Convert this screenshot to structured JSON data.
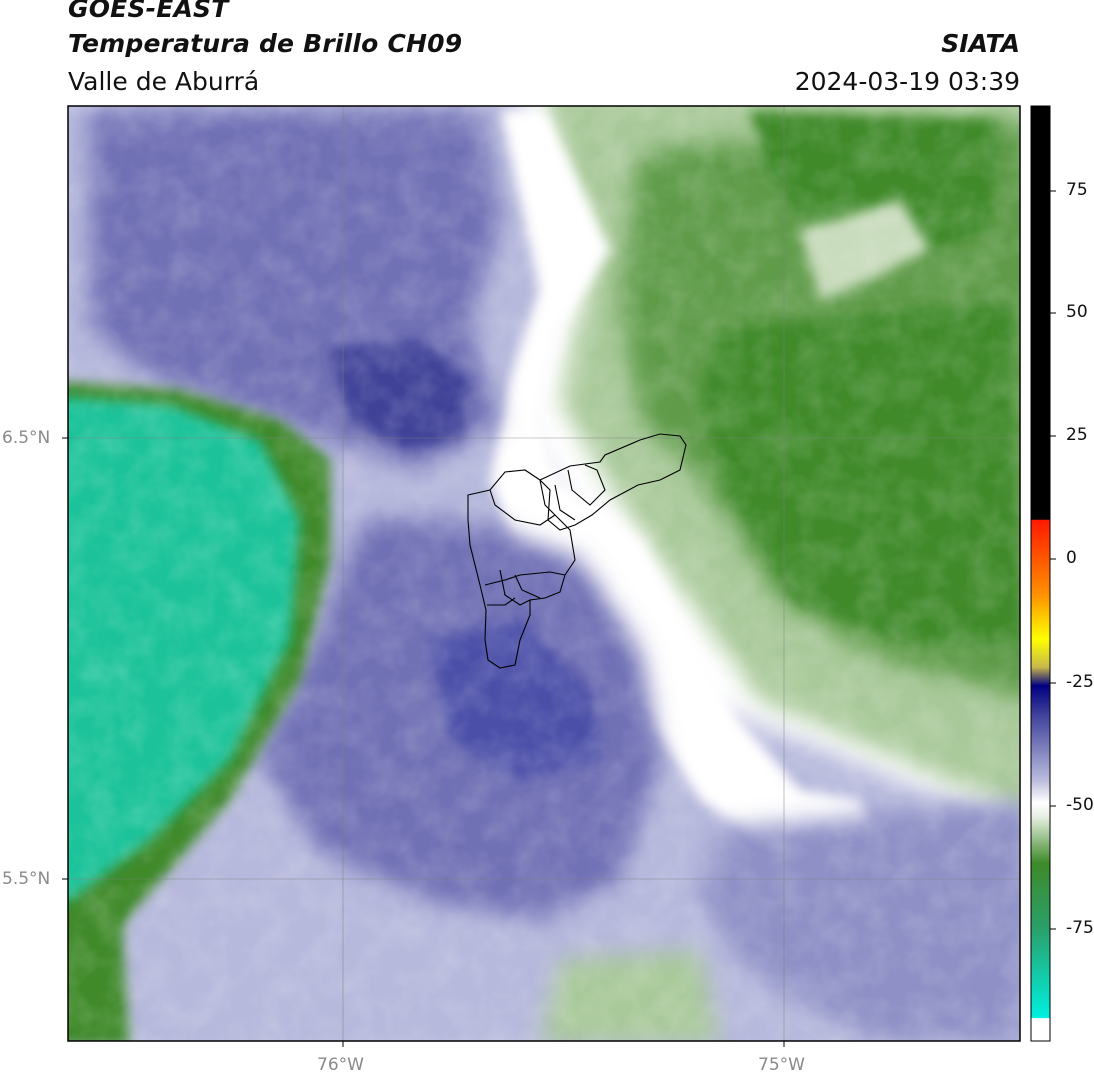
{
  "header": {
    "satellite": "GOES-EAST",
    "product": "Temperatura de Brillo CH09",
    "agency": "SIATA",
    "region": "Valle de Aburrá",
    "datetime": "2024-03-19 03:39"
  },
  "axes": {
    "x_ticks": [
      "76°W",
      "75°W"
    ],
    "y_ticks": [
      "6.5°N",
      "5.5°N"
    ]
  },
  "colorbar": {
    "ticks": [
      "75",
      "50",
      "25",
      "0",
      "-25",
      "-50",
      "-75"
    ],
    "colors": {
      "black": "#000000",
      "red": "#ff1a00",
      "orange": "#ff8c00",
      "yellow": "#ffff00",
      "navy": "#000080",
      "violet": "#4b4fa8",
      "white": "#ffffff",
      "green": "#3d8a2a",
      "cyan": "#00f0e0"
    }
  },
  "map_colors": {
    "violet_dark": "#3f4398",
    "violet": "#6f70b5",
    "lavender": "#b6b8dc",
    "white": "#ffffff",
    "green_light": "#a9c99a",
    "green_dark": "#3f8a2c",
    "teal": "#1fc39a"
  }
}
